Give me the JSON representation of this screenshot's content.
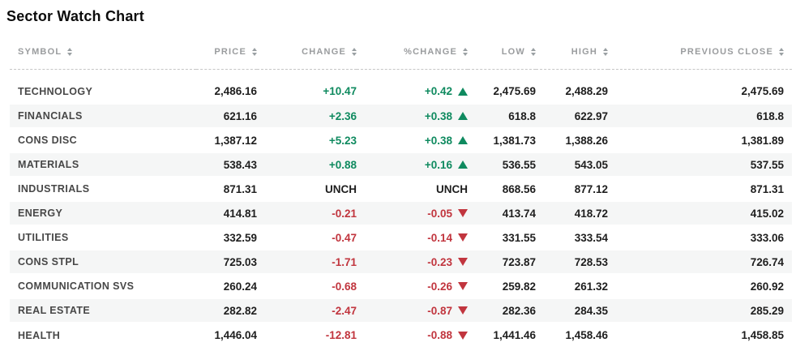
{
  "title": "Sector Watch Chart",
  "colors": {
    "positive": "#0f8a5f",
    "negative": "#c1353e",
    "header_text": "#9a9c9e",
    "row_stripe": "#f5f6f6",
    "number_text": "#1e1e1e",
    "symbol_text": "#474747"
  },
  "table": {
    "columns": [
      {
        "id": "symbol",
        "label": "SYMBOL",
        "sortable": true
      },
      {
        "id": "price",
        "label": "PRICE",
        "sortable": true
      },
      {
        "id": "change",
        "label": "CHANGE",
        "sortable": true
      },
      {
        "id": "pct_change",
        "label": "%CHANGE",
        "sortable": true
      },
      {
        "id": "low",
        "label": "LOW",
        "sortable": true
      },
      {
        "id": "high",
        "label": "HIGH",
        "sortable": true
      },
      {
        "id": "prev_close",
        "label": "PREVIOUS CLOSE",
        "sortable": true
      }
    ],
    "rows": [
      {
        "symbol": "TECHNOLOGY",
        "price": "2,486.16",
        "change": "+10.47",
        "pct_change": "+0.42",
        "direction": "up",
        "low": "2,475.69",
        "high": "2,488.29",
        "prev_close": "2,475.69"
      },
      {
        "symbol": "FINANCIALS",
        "price": "621.16",
        "change": "+2.36",
        "pct_change": "+0.38",
        "direction": "up",
        "low": "618.8",
        "high": "622.97",
        "prev_close": "618.8"
      },
      {
        "symbol": "CONS DISC",
        "price": "1,387.12",
        "change": "+5.23",
        "pct_change": "+0.38",
        "direction": "up",
        "low": "1,381.73",
        "high": "1,388.26",
        "prev_close": "1,381.89"
      },
      {
        "symbol": "MATERIALS",
        "price": "538.43",
        "change": "+0.88",
        "pct_change": "+0.16",
        "direction": "up",
        "low": "536.55",
        "high": "543.05",
        "prev_close": "537.55"
      },
      {
        "symbol": "INDUSTRIALS",
        "price": "871.31",
        "change": "UNCH",
        "pct_change": "UNCH",
        "direction": "none",
        "low": "868.56",
        "high": "877.12",
        "prev_close": "871.31"
      },
      {
        "symbol": "ENERGY",
        "price": "414.81",
        "change": "-0.21",
        "pct_change": "-0.05",
        "direction": "down",
        "low": "413.74",
        "high": "418.72",
        "prev_close": "415.02"
      },
      {
        "symbol": "UTILITIES",
        "price": "332.59",
        "change": "-0.47",
        "pct_change": "-0.14",
        "direction": "down",
        "low": "331.55",
        "high": "333.54",
        "prev_close": "333.06"
      },
      {
        "symbol": "CONS STPL",
        "price": "725.03",
        "change": "-1.71",
        "pct_change": "-0.23",
        "direction": "down",
        "low": "723.87",
        "high": "728.53",
        "prev_close": "726.74"
      },
      {
        "symbol": "COMMUNICATION SVS",
        "price": "260.24",
        "change": "-0.68",
        "pct_change": "-0.26",
        "direction": "down",
        "low": "259.82",
        "high": "261.32",
        "prev_close": "260.92"
      },
      {
        "symbol": "REAL ESTATE",
        "price": "282.82",
        "change": "-2.47",
        "pct_change": "-0.87",
        "direction": "down",
        "low": "282.36",
        "high": "284.35",
        "prev_close": "285.29"
      },
      {
        "symbol": "HEALTH",
        "price": "1,446.04",
        "change": "-12.81",
        "pct_change": "-0.88",
        "direction": "down",
        "low": "1,441.46",
        "high": "1,458.46",
        "prev_close": "1,458.85"
      }
    ]
  }
}
